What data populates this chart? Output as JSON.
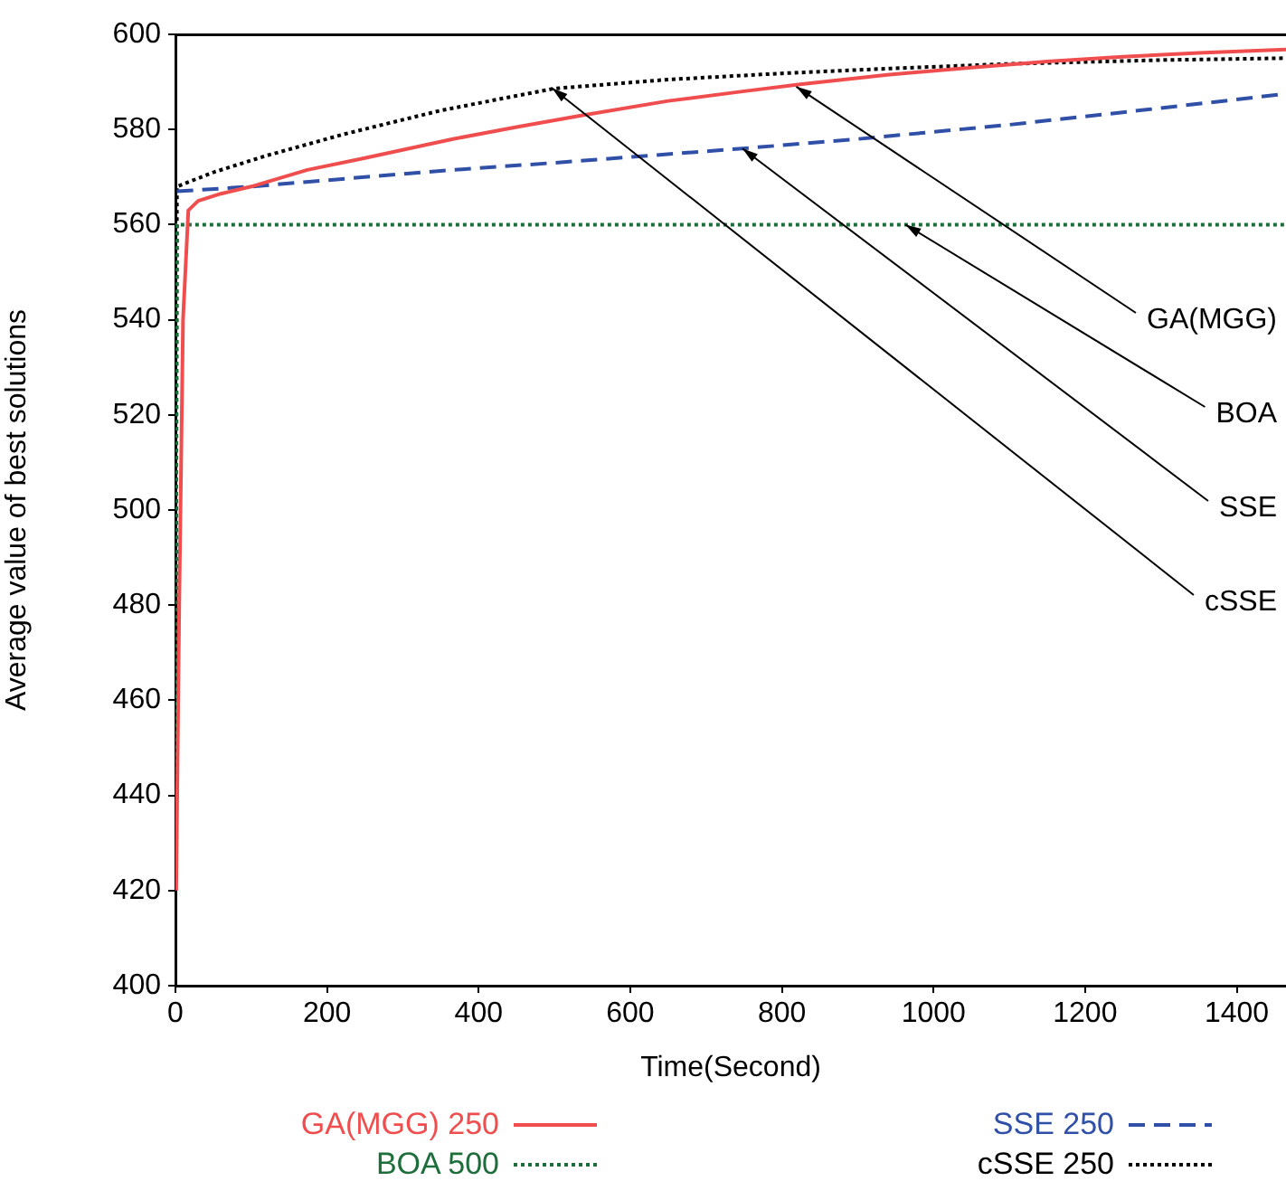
{
  "chart_data": {
    "type": "line",
    "xlabel": "Time(Second)",
    "ylabel": "Average value of best solutions",
    "xlim": [
      0,
      1465
    ],
    "xticks": [
      0,
      200,
      400,
      600,
      800,
      1000,
      1200,
      1400
    ],
    "ylim": [
      400,
      600
    ],
    "yticks": [
      400,
      420,
      440,
      460,
      480,
      500,
      520,
      540,
      560,
      580,
      600
    ],
    "grid": false,
    "legend": "bottom",
    "marker": "none",
    "series": [
      {
        "name": "GA(MGG) 250",
        "color": "#f04e4e",
        "line_style": "solid",
        "x": [
          1,
          5,
          10,
          17,
          30,
          60,
          100,
          174,
          250,
          366,
          450,
          537,
          650,
          748,
          824,
          939,
          1050,
          1150,
          1250,
          1350,
          1465
        ],
        "values": [
          420,
          480,
          540,
          563,
          565,
          566.5,
          568,
          571.5,
          574,
          578,
          580.5,
          583,
          586,
          588,
          589.5,
          591.5,
          593,
          594.3,
          595.3,
          596.1,
          596.8
        ]
      },
      {
        "name": "BOA 500",
        "color": "#1e6e3c",
        "line_style": "dotted",
        "x": [
          0,
          2,
          1465
        ],
        "values": [
          430,
          560,
          560
        ]
      },
      {
        "name": "SSE 250",
        "color": "#3050a8",
        "line_style": "dashed",
        "x": [
          2,
          100,
          250,
          366,
          500,
          748,
          900,
          1100,
          1300,
          1465
        ],
        "values": [
          567,
          568,
          570,
          571.5,
          573,
          576,
          578,
          581,
          584.5,
          587.5
        ]
      },
      {
        "name": "cSSE 250",
        "color": "#000000",
        "line_style": "dotted",
        "x": [
          0,
          2,
          50,
          120,
          222,
          350,
          499,
          650,
          800,
          939,
          1100,
          1300,
          1465
        ],
        "values": [
          430,
          568,
          571,
          574.5,
          579,
          584,
          588.6,
          590.5,
          591.8,
          592.8,
          593.8,
          594.6,
          595
        ]
      }
    ],
    "annotations": [
      {
        "text": "GA(MGG)",
        "x": 819,
        "y": 589
      },
      {
        "text": "BOA",
        "x": 963,
        "y": 560
      },
      {
        "text": "SSE",
        "x": 748,
        "y": 576
      },
      {
        "text": "cSSE",
        "x": 497,
        "y": 588.7
      }
    ]
  }
}
